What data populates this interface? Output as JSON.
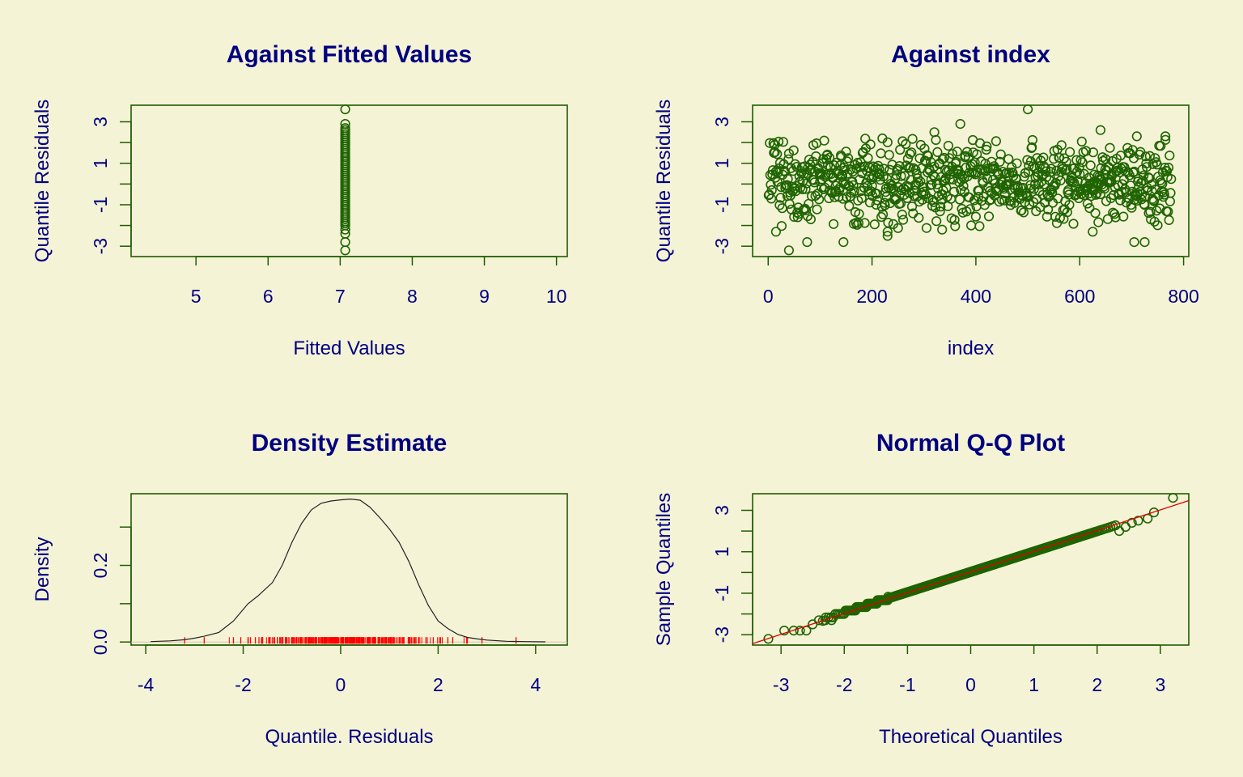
{
  "colors": {
    "background": "#f5f3d6",
    "text": "#000080",
    "frame": "#1f5c00",
    "points": "#1f6400",
    "rug": "#ff0000",
    "qq_line": "#e00000",
    "density_line": "#222222"
  },
  "chart_data": [
    {
      "id": "fitted",
      "type": "scatter",
      "title": "Against Fitted Values",
      "xlabel": "Fitted Values",
      "ylabel": "Quantile Residuals",
      "xlim": [
        4.1,
        10.15
      ],
      "ylim": [
        -3.5,
        3.8
      ],
      "xticks": [
        5,
        6,
        7,
        8,
        9,
        10
      ],
      "yticks": [
        -3,
        -2,
        -1,
        0,
        1,
        2,
        3
      ],
      "yticklabels": [
        "-3",
        "",
        "-1",
        "",
        "1",
        "",
        "3"
      ],
      "fitted_value": 7.07,
      "y_values": [
        3.6,
        2.9,
        2.7,
        2.6,
        2.5,
        2.4,
        2.3,
        2.2,
        2.1,
        2.0,
        1.9,
        1.8,
        1.7,
        1.6,
        1.5,
        1.4,
        1.3,
        1.2,
        1.1,
        1.0,
        0.9,
        0.8,
        0.7,
        0.6,
        0.5,
        0.4,
        0.3,
        0.2,
        0.1,
        0.0,
        -0.1,
        -0.2,
        -0.3,
        -0.4,
        -0.5,
        -0.6,
        -0.7,
        -0.8,
        -0.9,
        -1.0,
        -1.1,
        -1.2,
        -1.3,
        -1.4,
        -1.5,
        -1.6,
        -1.7,
        -1.8,
        -1.9,
        -2.0,
        -2.2,
        -2.4,
        -2.8,
        -3.2
      ]
    },
    {
      "id": "index",
      "type": "scatter",
      "title": "Against  index",
      "xlabel": "index",
      "ylabel": "Quantile Residuals",
      "xlim": [
        -30,
        810
      ],
      "ylim": [
        -3.5,
        3.8
      ],
      "xticks": [
        0,
        200,
        400,
        600,
        800
      ],
      "yticks": [
        -3,
        -2,
        -1,
        0,
        1,
        2,
        3
      ],
      "yticklabels": [
        "-3",
        "",
        "-1",
        "",
        "1",
        "",
        "3"
      ],
      "n_points": 776,
      "outliers": [
        [
          500,
          3.6
        ],
        [
          370,
          2.9
        ],
        [
          640,
          2.6
        ],
        [
          320,
          2.5
        ],
        [
          765,
          2.3
        ],
        [
          710,
          2.3
        ],
        [
          40,
          -3.2
        ],
        [
          75,
          -2.8
        ],
        [
          145,
          -2.8
        ],
        [
          705,
          -2.8
        ],
        [
          725,
          -2.8
        ],
        [
          230,
          -2.5
        ],
        [
          230,
          -2.3
        ],
        [
          625,
          -2.3
        ],
        [
          335,
          -2.2
        ],
        [
          15,
          -2.3
        ]
      ]
    },
    {
      "id": "density",
      "type": "line",
      "title": "Density Estimate",
      "xlabel": "Quantile. Residuals",
      "ylabel": "Density",
      "xlim": [
        -4.3,
        4.65
      ],
      "ylim": [
        -0.008,
        0.387
      ],
      "xticks": [
        -4,
        -2,
        0,
        2,
        4
      ],
      "yticks": [
        0.0,
        0.1,
        0.2,
        0.3
      ],
      "yticklabels": [
        "0.0",
        "",
        "0.2",
        ""
      ],
      "x": [
        -3.9,
        -3.5,
        -3.2,
        -3.0,
        -2.8,
        -2.5,
        -2.2,
        -1.9,
        -1.7,
        -1.4,
        -1.2,
        -1.0,
        -0.8,
        -0.6,
        -0.4,
        -0.2,
        0.0,
        0.2,
        0.4,
        0.6,
        0.8,
        1.0,
        1.2,
        1.4,
        1.6,
        1.8,
        2.0,
        2.2,
        2.4,
        2.6,
        2.8,
        3.0,
        3.4,
        3.8,
        4.2
      ],
      "y": [
        0.001,
        0.003,
        0.006,
        0.01,
        0.015,
        0.025,
        0.055,
        0.1,
        0.12,
        0.155,
        0.2,
        0.26,
        0.31,
        0.345,
        0.362,
        0.368,
        0.371,
        0.373,
        0.37,
        0.352,
        0.325,
        0.295,
        0.26,
        0.21,
        0.15,
        0.095,
        0.055,
        0.035,
        0.02,
        0.012,
        0.008,
        0.005,
        0.002,
        0.001,
        0.0005
      ],
      "rug": [
        -3.2,
        -2.8,
        -2.2,
        -2.05,
        -1.85,
        -1.75,
        -1.6,
        -1.45,
        -1.3,
        -1.2,
        -1.1,
        -1.0,
        -0.9,
        -0.8,
        -0.7,
        -0.6,
        -0.5,
        -0.4,
        -0.3,
        -0.2,
        -0.1,
        0.0,
        0.1,
        0.2,
        0.3,
        0.4,
        0.5,
        0.6,
        0.7,
        0.8,
        0.9,
        1.0,
        1.1,
        1.2,
        1.3,
        1.4,
        1.5,
        1.6,
        1.75,
        1.9,
        2.05,
        2.2,
        2.3,
        2.6,
        2.9,
        3.6
      ]
    },
    {
      "id": "qq",
      "type": "scatter",
      "title": "Normal Q-Q Plot",
      "xlabel": "Theoretical Quantiles",
      "ylabel": "Sample Quantiles",
      "xlim": [
        -3.45,
        3.45
      ],
      "ylim": [
        -3.5,
        3.8
      ],
      "xticks": [
        -3,
        -2,
        -1,
        0,
        1,
        2,
        3
      ],
      "yticks": [
        -3,
        -2,
        -1,
        0,
        1,
        2,
        3
      ],
      "yticklabels": [
        "-3",
        "",
        "-1",
        "",
        "1",
        "",
        "3"
      ],
      "n_points": 776,
      "reference_line": {
        "intercept": 0.02,
        "slope": 1.0
      },
      "tail_points": [
        [
          -3.2,
          -3.2
        ],
        [
          -2.95,
          -2.8
        ],
        [
          -2.8,
          -2.8
        ],
        [
          -2.7,
          -2.8
        ],
        [
          -2.6,
          -2.8
        ],
        [
          -2.5,
          -2.5
        ],
        [
          -2.4,
          -2.3
        ],
        [
          -2.3,
          -2.3
        ],
        [
          -2.2,
          -2.3
        ],
        [
          2.35,
          2.0
        ],
        [
          2.45,
          2.2
        ],
        [
          2.55,
          2.4
        ],
        [
          2.65,
          2.5
        ],
        [
          2.8,
          2.6
        ],
        [
          2.9,
          2.9
        ],
        [
          3.2,
          3.6
        ]
      ]
    }
  ]
}
